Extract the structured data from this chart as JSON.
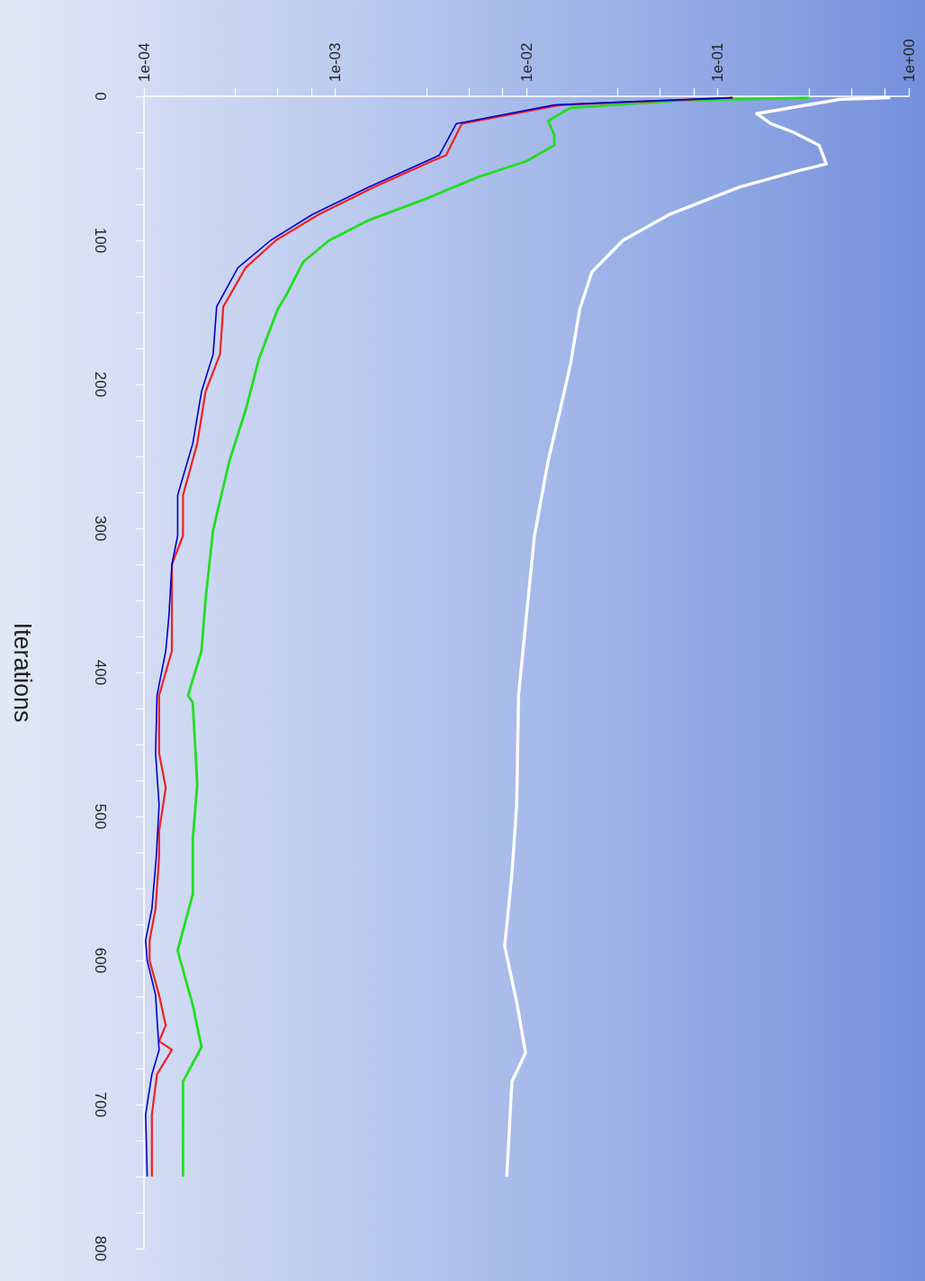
{
  "chart_data": {
    "type": "line",
    "ylabel": "Iterations",
    "log": "x",
    "grid": false,
    "marker": "none",
    "ylim": [
      800,
      0
    ],
    "yticks": [
      0,
      {
        "value": 25,
        "label": null
      },
      {
        "value": 50,
        "label": null
      },
      {
        "value": 75,
        "label": null
      },
      100,
      {
        "value": 125,
        "label": null
      },
      {
        "value": 150,
        "label": null
      },
      {
        "value": 175,
        "label": null
      },
      200,
      {
        "value": 225,
        "label": null
      },
      {
        "value": 250,
        "label": null
      },
      {
        "value": 275,
        "label": null
      },
      300,
      {
        "value": 325,
        "label": null
      },
      {
        "value": 350,
        "label": null
      },
      {
        "value": 375,
        "label": null
      },
      400,
      {
        "value": 425,
        "label": null
      },
      {
        "value": 450,
        "label": null
      },
      {
        "value": 475,
        "label": null
      },
      500,
      {
        "value": 525,
        "label": null
      },
      {
        "value": 550,
        "label": null
      },
      {
        "value": 575,
        "label": null
      },
      600,
      {
        "value": 625,
        "label": null
      },
      {
        "value": 650,
        "label": null
      },
      {
        "value": 675,
        "label": null
      },
      700,
      {
        "value": 725,
        "label": null
      },
      {
        "value": 750,
        "label": null
      },
      {
        "value": 775,
        "label": null
      },
      800
    ],
    "xlim": [
      0.0001,
      1
    ],
    "xticks": [
      {
        "value": 0.0001,
        "label": "1e-04"
      },
      {
        "value": 0.0003,
        "label": null
      },
      {
        "value": 0.0005,
        "label": null
      },
      {
        "value": 0.00075,
        "label": null
      },
      {
        "value": 0.001,
        "label": "1e-03"
      },
      {
        "value": 0.003,
        "label": null
      },
      {
        "value": 0.005,
        "label": null
      },
      {
        "value": 0.0075,
        "label": null
      },
      {
        "value": 0.01,
        "label": "1e-02"
      },
      {
        "value": 0.03,
        "label": null
      },
      {
        "value": 0.05,
        "label": null
      },
      {
        "value": 0.075,
        "label": null
      },
      {
        "value": 0.1,
        "label": "1e-01"
      },
      {
        "value": 0.3,
        "label": null
      },
      {
        "value": 0.5,
        "label": null
      },
      {
        "value": 0.75,
        "label": null
      },
      {
        "value": 1,
        "label": "1e+00"
      }
    ],
    "series": [
      {
        "color": "#ffffff",
        "values": [
          1,
          2,
          12,
          19,
          25,
          34,
          47,
          52,
          63,
          82,
          100,
          122,
          148,
          186,
          218,
          253,
          306,
          361,
          416,
          492,
          540,
          590,
          629,
          664,
          684,
          750
        ],
        "x": [
          0.8,
          0.44,
          0.16,
          0.19,
          0.25,
          0.34,
          0.37,
          0.26,
          0.13,
          0.056,
          0.032,
          0.022,
          0.019,
          0.017,
          0.015,
          0.013,
          0.011,
          0.01,
          0.0091,
          0.0089,
          0.0084,
          0.0077,
          0.0089,
          0.0099,
          0.0084,
          0.0079
        ]
      },
      {
        "color": "#22dd22",
        "values": [
          1,
          3,
          8,
          17,
          27,
          34,
          45,
          56,
          71,
          86,
          100,
          115,
          137,
          148,
          182,
          218,
          253,
          301,
          349,
          385,
          416,
          421,
          478,
          516,
          554,
          593,
          631,
          660,
          684,
          750
        ],
        "x": [
          0.3,
          0.06,
          0.017,
          0.013,
          0.014,
          0.014,
          0.01,
          0.0056,
          0.003,
          0.0015,
          0.00093,
          0.00068,
          0.00056,
          0.0005,
          0.0004,
          0.00034,
          0.00028,
          0.00023,
          0.00021,
          0.0002,
          0.00017,
          0.00018,
          0.00019,
          0.00018,
          0.00018,
          0.00015,
          0.00018,
          0.0002,
          0.00016,
          0.00016
        ]
      },
      {
        "color": "#ee2222",
        "values": [
          1,
          4,
          6,
          19,
          41,
          45,
          63,
          82,
          100,
          119,
          146,
          179,
          205,
          241,
          277,
          305,
          325,
          361,
          385,
          416,
          456,
          480,
          510,
          528,
          564,
          586,
          600,
          624,
          645,
          656,
          662,
          679,
          707,
          750
        ],
        "x": [
          0.12,
          0.034,
          0.015,
          0.0046,
          0.0038,
          0.0032,
          0.0016,
          0.00082,
          0.00049,
          0.00034,
          0.00026,
          0.00025,
          0.00021,
          0.00019,
          0.00016,
          0.00016,
          0.00014,
          0.00014,
          0.00014,
          0.00012,
          0.00012,
          0.00013,
          0.00012,
          0.00012,
          0.000115,
          0.000107,
          0.000107,
          0.00012,
          0.00013,
          0.00012,
          0.00014,
          0.000117,
          0.00011,
          0.00011
        ]
      },
      {
        "color": "#0000cc",
        "values": [
          1,
          4,
          6,
          19,
          41,
          45,
          63,
          82,
          100,
          119,
          146,
          179,
          205,
          241,
          277,
          305,
          325,
          361,
          385,
          416,
          456,
          492,
          528,
          564,
          586,
          600,
          624,
          648,
          662,
          679,
          707,
          750
        ],
        "x": [
          0.12,
          0.032,
          0.014,
          0.0043,
          0.0035,
          0.003,
          0.0015,
          0.00076,
          0.00046,
          0.00031,
          0.00024,
          0.00023,
          0.0002,
          0.00018,
          0.00015,
          0.00015,
          0.00014,
          0.000135,
          0.00013,
          0.000117,
          0.000115,
          0.00012,
          0.000116,
          0.00011,
          0.000102,
          0.000104,
          0.000115,
          0.000118,
          0.00012,
          0.00011,
          0.000102,
          0.000104
        ]
      }
    ]
  }
}
